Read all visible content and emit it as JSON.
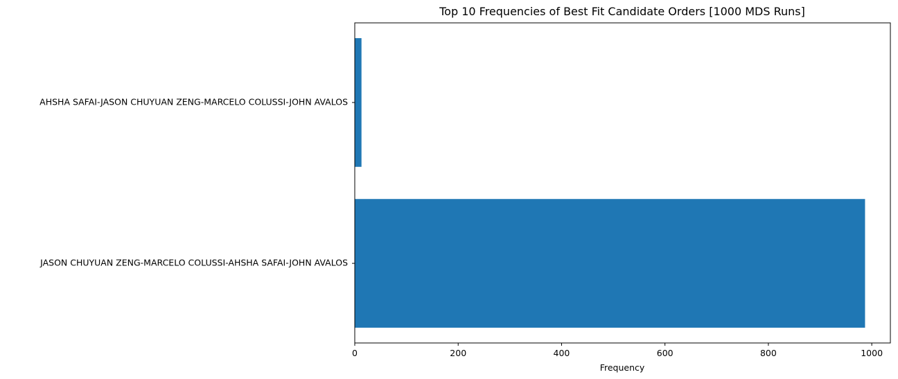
{
  "chart_data": {
    "type": "bar",
    "orientation": "horizontal",
    "title": "Top 10 Frequencies of Best Fit Candidate Orders [1000 MDS Runs]",
    "xlabel": "Frequency",
    "ylabel": "",
    "categories": [
      "JASON CHUYUAN ZENG-MARCELO COLUSSI-AHSHA SAFAI-JOHN AVALOS",
      "AHSHA SAFAI-JASON CHUYUAN ZENG-MARCELO COLUSSI-JOHN AVALOS"
    ],
    "values": [
      987,
      13
    ],
    "xlim": [
      0,
      1036
    ],
    "xticks": [
      0,
      200,
      400,
      600,
      800,
      1000
    ],
    "grid": false,
    "bar_color": "#1f77b4"
  }
}
